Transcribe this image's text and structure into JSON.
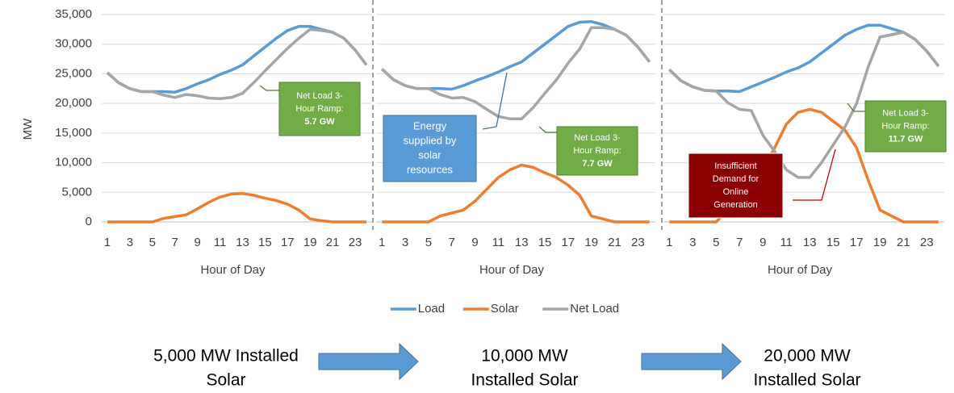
{
  "chart_data": [
    {
      "type": "line",
      "y_label": "MW",
      "x_label": "Hour of Day",
      "categories": [
        1,
        null,
        3,
        null,
        5,
        null,
        7,
        null,
        9,
        null,
        11,
        null,
        13,
        null,
        15,
        null,
        17,
        null,
        19,
        null,
        21,
        null,
        23,
        null
      ],
      "ylim": [
        0,
        35000
      ],
      "yticks": [
        0,
        {
          "value": 5000,
          "label": "5,000"
        },
        {
          "value": 10000,
          "label": "10,000"
        },
        {
          "value": 15000,
          "label": "15,000"
        },
        {
          "value": 20000,
          "label": "20,000"
        },
        {
          "value": 25000,
          "label": "25,000"
        },
        {
          "value": 30000,
          "label": "30,000"
        },
        {
          "value": 35000,
          "label": "35,000"
        }
      ],
      "grid": true,
      "legend": "bottom",
      "series": [
        {
          "name": "Load",
          "color": "#5b9bd5",
          "values": [
            25200,
            23500,
            22500,
            22000,
            22000,
            22000,
            21900,
            22500,
            23300,
            24000,
            24900,
            25600,
            26500,
            28000,
            29500,
            31000,
            32300,
            33000,
            33000,
            32500,
            32000,
            31000,
            29000,
            26500
          ]
        },
        {
          "name": "Solar",
          "color": "#ed7d31",
          "values": [
            0,
            0,
            0,
            0,
            0,
            600,
            900,
            1200,
            2200,
            3300,
            4200,
            4700,
            4800,
            4500,
            4000,
            3600,
            3000,
            2000,
            500,
            200,
            0,
            0,
            0,
            0
          ]
        },
        {
          "name": "Net Load",
          "color": "#a5a5a5",
          "values": [
            25200,
            23500,
            22500,
            22000,
            22000,
            21400,
            21000,
            21500,
            21300,
            20900,
            20800,
            21000,
            21700,
            23500,
            25500,
            27400,
            29300,
            31000,
            32500,
            32300,
            32000,
            31000,
            29000,
            26500
          ]
        }
      ],
      "annotations": [
        {
          "text": [
            "Net Load 3-",
            "Hour Ramp:"
          ],
          "emphasis": "5.7 GW"
        }
      ],
      "caption": [
        "5,000 MW Installed",
        "Solar"
      ]
    },
    {
      "type": "line",
      "x_label": "Hour of Day",
      "categories": [
        1,
        null,
        3,
        null,
        5,
        null,
        7,
        null,
        9,
        null,
        11,
        null,
        13,
        null,
        15,
        null,
        17,
        null,
        19,
        null,
        21,
        null,
        23,
        null
      ],
      "ylim": [
        0,
        35000
      ],
      "yticks": [
        0,
        5000,
        10000,
        15000,
        20000,
        25000,
        30000,
        35000
      ],
      "grid": true,
      "series": [
        {
          "name": "Load",
          "color": "#5b9bd5",
          "values": [
            25800,
            24000,
            23000,
            22500,
            22500,
            22500,
            22400,
            23000,
            23800,
            24500,
            25300,
            26200,
            27000,
            28500,
            30000,
            31500,
            33000,
            33700,
            33800,
            33300,
            32500,
            31500,
            29500,
            27000
          ]
        },
        {
          "name": "Solar",
          "color": "#ed7d31",
          "values": [
            0,
            0,
            0,
            0,
            0,
            1000,
            1500,
            2000,
            3500,
            5500,
            7500,
            8800,
            9600,
            9200,
            8300,
            7500,
            6200,
            4500,
            1000,
            500,
            0,
            0,
            0,
            0
          ]
        },
        {
          "name": "Net Load",
          "color": "#a5a5a5",
          "values": [
            25800,
            24000,
            23000,
            22500,
            22500,
            21500,
            20900,
            21000,
            20300,
            19000,
            17800,
            17400,
            17400,
            19300,
            21700,
            24000,
            26800,
            29200,
            32800,
            32800,
            32500,
            31500,
            29500,
            27000
          ]
        }
      ],
      "annotations": [
        {
          "text": [
            "Energy",
            "supplied by",
            "solar",
            "resources"
          ]
        },
        {
          "text": [
            "Net Load 3-",
            "Hour Ramp:"
          ],
          "emphasis": "7.7 GW"
        }
      ],
      "caption": [
        "10,000 MW",
        "Installed Solar"
      ]
    },
    {
      "type": "line",
      "x_label": "Hour of Day",
      "categories": [
        1,
        null,
        3,
        null,
        5,
        null,
        7,
        null,
        9,
        null,
        11,
        null,
        13,
        null,
        15,
        null,
        17,
        null,
        19,
        null,
        21,
        null,
        23,
        null
      ],
      "ylim": [
        0,
        35000
      ],
      "yticks": [
        0,
        5000,
        10000,
        15000,
        20000,
        25000,
        30000,
        35000
      ],
      "grid": true,
      "series": [
        {
          "name": "Load",
          "color": "#5b9bd5",
          "values": [
            25700,
            23800,
            22800,
            22200,
            22100,
            22100,
            22000,
            22800,
            23600,
            24400,
            25300,
            26000,
            27000,
            28500,
            30000,
            31500,
            32500,
            33200,
            33200,
            32600,
            32000,
            30800,
            28800,
            26300
          ]
        },
        {
          "name": "Solar",
          "color": "#ed7d31",
          "values": [
            0,
            0,
            0,
            0,
            0,
            2000,
            4000,
            6000,
            9000,
            12500,
            16500,
            18500,
            19000,
            18500,
            17000,
            15500,
            12500,
            7000,
            2000,
            1000,
            0,
            0,
            0,
            0
          ]
        },
        {
          "name": "Net Load",
          "color": "#a5a5a5",
          "values": [
            25700,
            23800,
            22800,
            22200,
            22100,
            20100,
            19000,
            18800,
            14600,
            11900,
            8800,
            7500,
            7500,
            10000,
            13000,
            16000,
            20000,
            26200,
            31200,
            31600,
            32000,
            30800,
            28800,
            26300
          ]
        }
      ],
      "annotations": [
        {
          "text": [
            "Net Load 3-",
            "Hour Ramp:"
          ],
          "emphasis": "11.7 GW"
        },
        {
          "text": [
            "Insufficient",
            "Demand for",
            "Online",
            "Generation"
          ]
        }
      ],
      "caption": [
        "20,000 MW",
        "Installed Solar"
      ]
    }
  ]
}
